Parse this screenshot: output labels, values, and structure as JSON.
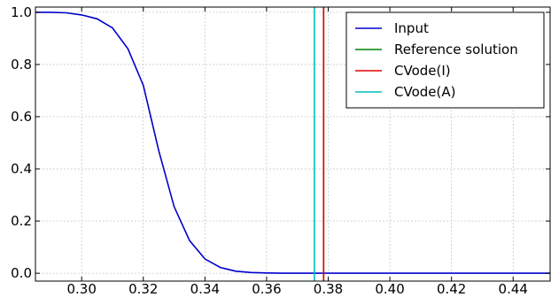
{
  "chart_data": {
    "type": "line",
    "title": "",
    "xlabel": "",
    "ylabel": "",
    "xlim": [
      0.285,
      0.452
    ],
    "ylim": [
      -0.03,
      1.02
    ],
    "xticks": [
      0.3,
      0.32,
      0.34,
      0.36,
      0.38,
      0.4,
      0.42,
      0.44
    ],
    "xtick_labels": [
      "0.30",
      "0.32",
      "0.34",
      "0.36",
      "0.38",
      "0.40",
      "0.42",
      "0.44"
    ],
    "yticks": [
      0.0,
      0.2,
      0.4,
      0.6,
      0.8,
      1.0
    ],
    "ytick_labels": [
      "0.0",
      "0.2",
      "0.4",
      "0.6",
      "0.8",
      "1.0"
    ],
    "grid": true,
    "legend_position": "top-right",
    "series": [
      {
        "name": "Input",
        "color": "#0000cc",
        "kind": "curve",
        "x": [
          0.285,
          0.29,
          0.295,
          0.3,
          0.305,
          0.31,
          0.315,
          0.32,
          0.325,
          0.33,
          0.335,
          0.34,
          0.345,
          0.35,
          0.355,
          0.36,
          0.365,
          0.37,
          0.38,
          0.4,
          0.452
        ],
        "y": [
          1.0,
          1.0,
          0.998,
          0.99,
          0.975,
          0.94,
          0.86,
          0.72,
          0.47,
          0.255,
          0.125,
          0.055,
          0.022,
          0.008,
          0.003,
          0.001,
          0.0,
          0.0,
          0.0,
          0.0,
          0.0
        ]
      },
      {
        "name": "Reference solution",
        "color": "#008000",
        "kind": "vline",
        "x": 0.3785
      },
      {
        "name": "CVode(I)",
        "color": "#e00000",
        "kind": "vline",
        "x": 0.3785
      },
      {
        "name": "CVode(A)",
        "color": "#00bfbf",
        "kind": "vline",
        "x": 0.3755
      }
    ]
  }
}
